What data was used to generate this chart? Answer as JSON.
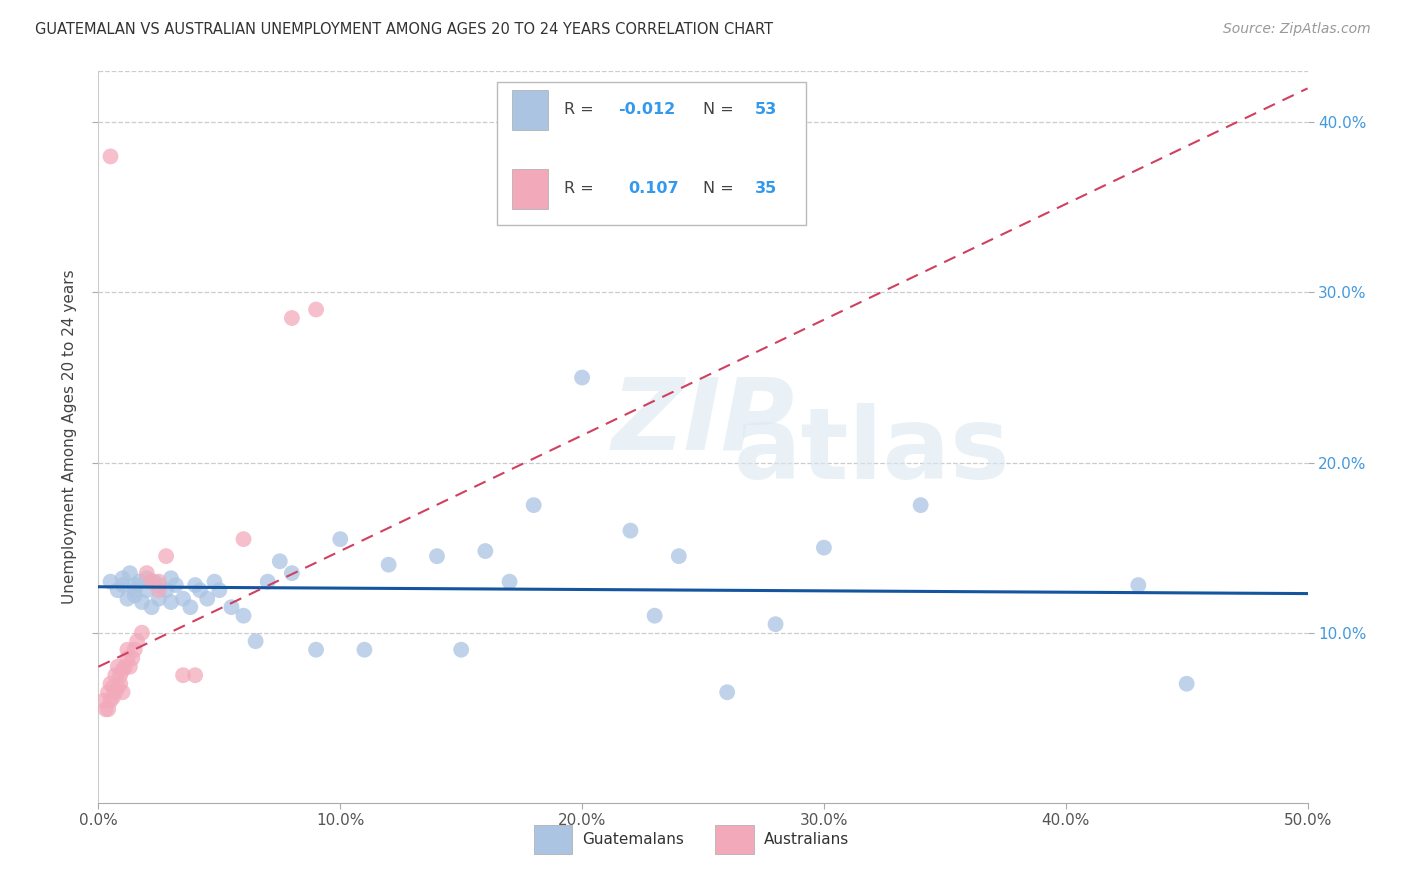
{
  "title": "GUATEMALAN VS AUSTRALIAN UNEMPLOYMENT AMONG AGES 20 TO 24 YEARS CORRELATION CHART",
  "source": "Source: ZipAtlas.com",
  "ylabel": "Unemployment Among Ages 20 to 24 years",
  "xlim": [
    0.0,
    0.5
  ],
  "ylim": [
    0.0,
    0.43
  ],
  "xtick_labels": [
    "0.0%",
    "10.0%",
    "20.0%",
    "30.0%",
    "40.0%",
    "50.0%"
  ],
  "xtick_vals": [
    0.0,
    0.1,
    0.2,
    0.3,
    0.4,
    0.5
  ],
  "ytick_labels": [
    "10.0%",
    "20.0%",
    "30.0%",
    "40.0%"
  ],
  "ytick_vals": [
    0.1,
    0.2,
    0.3,
    0.4
  ],
  "blue_R": "-0.012",
  "blue_N": "53",
  "pink_R": "0.107",
  "pink_N": "35",
  "blue_color": "#aac4e2",
  "pink_color": "#f2aabb",
  "blue_line_color": "#1555a0",
  "pink_line_color": "#d04060",
  "grid_color": "#cccccc",
  "watermark_zip": "ZIP",
  "watermark_atlas": "atlas",
  "blue_scatter_x": [
    0.005,
    0.008,
    0.01,
    0.01,
    0.012,
    0.013,
    0.015,
    0.015,
    0.015,
    0.017,
    0.018,
    0.02,
    0.02,
    0.022,
    0.023,
    0.025,
    0.025,
    0.028,
    0.03,
    0.03,
    0.032,
    0.035,
    0.038,
    0.04,
    0.042,
    0.045,
    0.048,
    0.05,
    0.055,
    0.06,
    0.065,
    0.07,
    0.075,
    0.08,
    0.09,
    0.1,
    0.11,
    0.12,
    0.14,
    0.15,
    0.16,
    0.17,
    0.18,
    0.2,
    0.22,
    0.23,
    0.24,
    0.26,
    0.28,
    0.3,
    0.34,
    0.43,
    0.45
  ],
  "blue_scatter_y": [
    0.13,
    0.125,
    0.128,
    0.132,
    0.12,
    0.135,
    0.125,
    0.128,
    0.122,
    0.13,
    0.118,
    0.125,
    0.132,
    0.115,
    0.13,
    0.128,
    0.12,
    0.125,
    0.118,
    0.132,
    0.128,
    0.12,
    0.115,
    0.128,
    0.125,
    0.12,
    0.13,
    0.125,
    0.115,
    0.11,
    0.095,
    0.13,
    0.142,
    0.135,
    0.09,
    0.155,
    0.09,
    0.14,
    0.145,
    0.09,
    0.148,
    0.13,
    0.175,
    0.25,
    0.16,
    0.11,
    0.145,
    0.065,
    0.105,
    0.15,
    0.175,
    0.128,
    0.07
  ],
  "pink_scatter_x": [
    0.002,
    0.003,
    0.004,
    0.004,
    0.005,
    0.005,
    0.006,
    0.006,
    0.007,
    0.007,
    0.008,
    0.008,
    0.009,
    0.009,
    0.01,
    0.01,
    0.011,
    0.012,
    0.012,
    0.013,
    0.014,
    0.015,
    0.016,
    0.018,
    0.02,
    0.022,
    0.025,
    0.025,
    0.028,
    0.035,
    0.04,
    0.06,
    0.08,
    0.09,
    0.005
  ],
  "pink_scatter_y": [
    0.06,
    0.055,
    0.055,
    0.065,
    0.06,
    0.07,
    0.062,
    0.068,
    0.065,
    0.075,
    0.068,
    0.08,
    0.07,
    0.075,
    0.065,
    0.078,
    0.08,
    0.085,
    0.09,
    0.08,
    0.085,
    0.09,
    0.095,
    0.1,
    0.135,
    0.13,
    0.13,
    0.125,
    0.145,
    0.075,
    0.075,
    0.155,
    0.285,
    0.29,
    0.38
  ]
}
